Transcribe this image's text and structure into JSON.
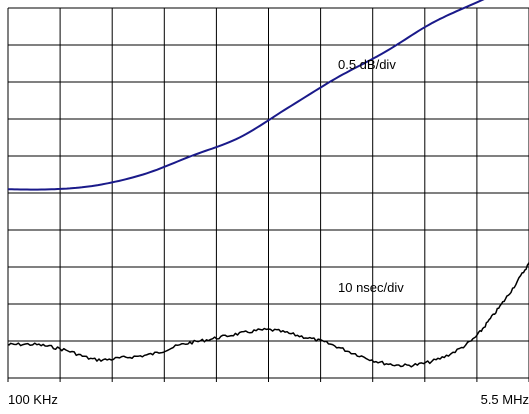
{
  "chart_data": {
    "type": "line",
    "title": "",
    "xlabel": "",
    "ylabel": "",
    "x_tick_labels": [
      "100 KHz",
      "5.5 MHz"
    ],
    "xlim": [
      0.1,
      5.5
    ],
    "ylim": [
      0,
      10
    ],
    "grid": true,
    "annotations": [
      "0.5 dB/div",
      "10 nsec/div"
    ],
    "series": [
      {
        "x": [
          0.1,
          0.55,
          1.0,
          1.5,
          2.0,
          2.5,
          3.0,
          3.5,
          4.0,
          4.5,
          5.0,
          5.5
        ],
        "y": [
          5.1,
          5.1,
          5.2,
          5.5,
          6.0,
          6.5,
          7.3,
          8.1,
          8.8,
          9.6,
          10.2,
          10.8
        ],
        "color": "#1a1a8a"
      },
      {
        "x": [
          0.1,
          0.4,
          0.7,
          1.0,
          1.3,
          1.6,
          1.9,
          2.2,
          2.5,
          2.8,
          3.1,
          3.4,
          3.7,
          4.0,
          4.3,
          4.6,
          4.9,
          5.1,
          5.3,
          5.5
        ],
        "y": [
          0.9,
          0.9,
          0.75,
          0.5,
          0.55,
          0.65,
          0.9,
          1.05,
          1.2,
          1.3,
          1.15,
          0.95,
          0.65,
          0.4,
          0.35,
          0.55,
          1.0,
          1.6,
          2.3,
          3.1
        ],
        "color": "#000000"
      }
    ]
  }
}
